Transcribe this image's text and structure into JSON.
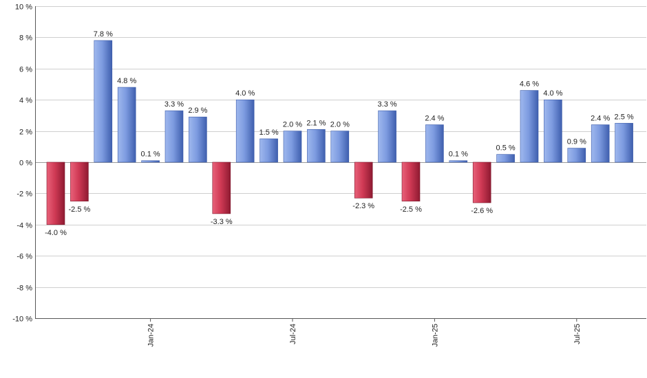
{
  "chart_data": {
    "type": "bar",
    "title": "",
    "xlabel": "",
    "ylabel": "",
    "ylim": [
      -10,
      10
    ],
    "ytick_step": 2,
    "ytick_suffix": " %",
    "grid": true,
    "colors": {
      "positive": "#6f8fd8",
      "negative": "#c8304c"
    },
    "x_tick_labels": [
      {
        "label": "Jan-24",
        "index": 4
      },
      {
        "label": "Jul-24",
        "index": 10
      },
      {
        "label": "Jan-25",
        "index": 16
      },
      {
        "label": "Jul-25",
        "index": 22
      }
    ],
    "values": [
      -4.0,
      -2.5,
      7.8,
      4.8,
      0.1,
      3.3,
      2.9,
      -3.3,
      4.0,
      1.5,
      2.0,
      2.1,
      2.0,
      -2.3,
      3.3,
      -2.5,
      2.4,
      0.1,
      -2.6,
      0.5,
      4.6,
      4.0,
      0.9,
      2.4,
      2.5
    ],
    "value_labels": [
      "-4.0 %",
      "-2.5 %",
      "7.8 %",
      "4.8 %",
      "0.1 %",
      "3.3 %",
      "2.9 %",
      "-3.3 %",
      "4.0 %",
      "1.5 %",
      "2.0 %",
      "2.1 %",
      "2.0 %",
      "-2.3 %",
      "3.3 %",
      "-2.5 %",
      "2.4 %",
      "0.1 %",
      "-2.6 %",
      "0.5 %",
      "4.6 %",
      "4.0 %",
      "0.9 %",
      "2.4 %",
      "2.5 %"
    ]
  }
}
